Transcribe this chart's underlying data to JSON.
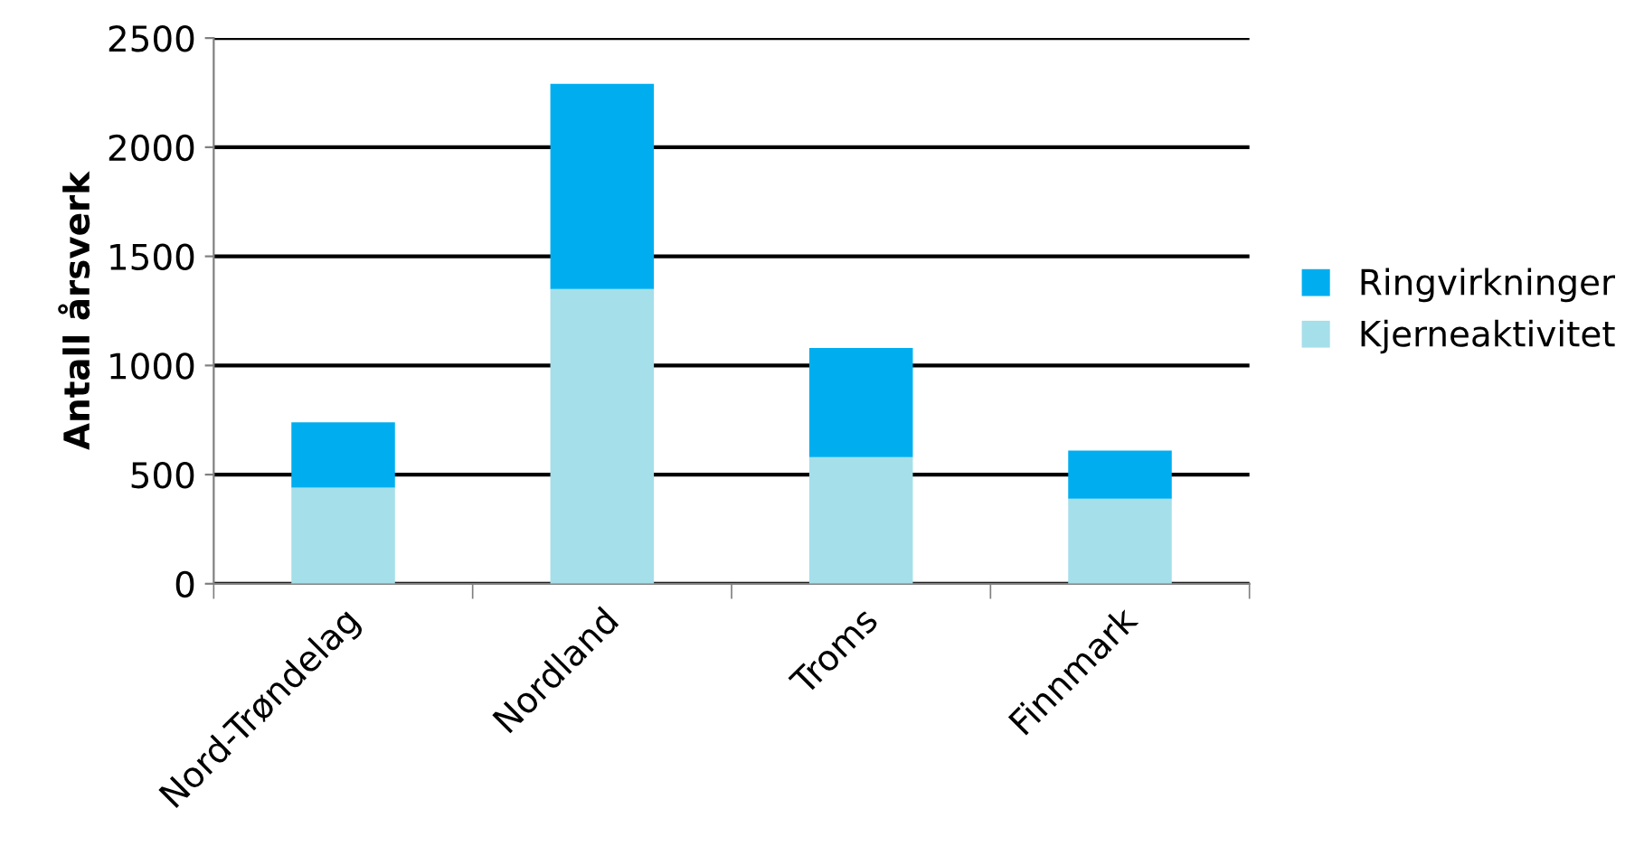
{
  "chart_data": {
    "type": "bar",
    "stacked": true,
    "ylabel": "Antall årsverk",
    "categories": [
      "Nord-Trøndelag",
      "Nordland",
      "Troms",
      "Finnmark"
    ],
    "series": [
      {
        "name": "Kjerneaktivitet",
        "color": "#a5dfea",
        "values": [
          440,
          1350,
          580,
          390
        ]
      },
      {
        "name": "Ringvirkninger",
        "color": "#00aeef",
        "values": [
          300,
          940,
          500,
          220
        ]
      }
    ],
    "ylim": [
      0,
      2500
    ],
    "yticks": [
      0,
      500,
      1000,
      1500,
      2000,
      2500
    ],
    "grid": "y",
    "legend": "right"
  }
}
